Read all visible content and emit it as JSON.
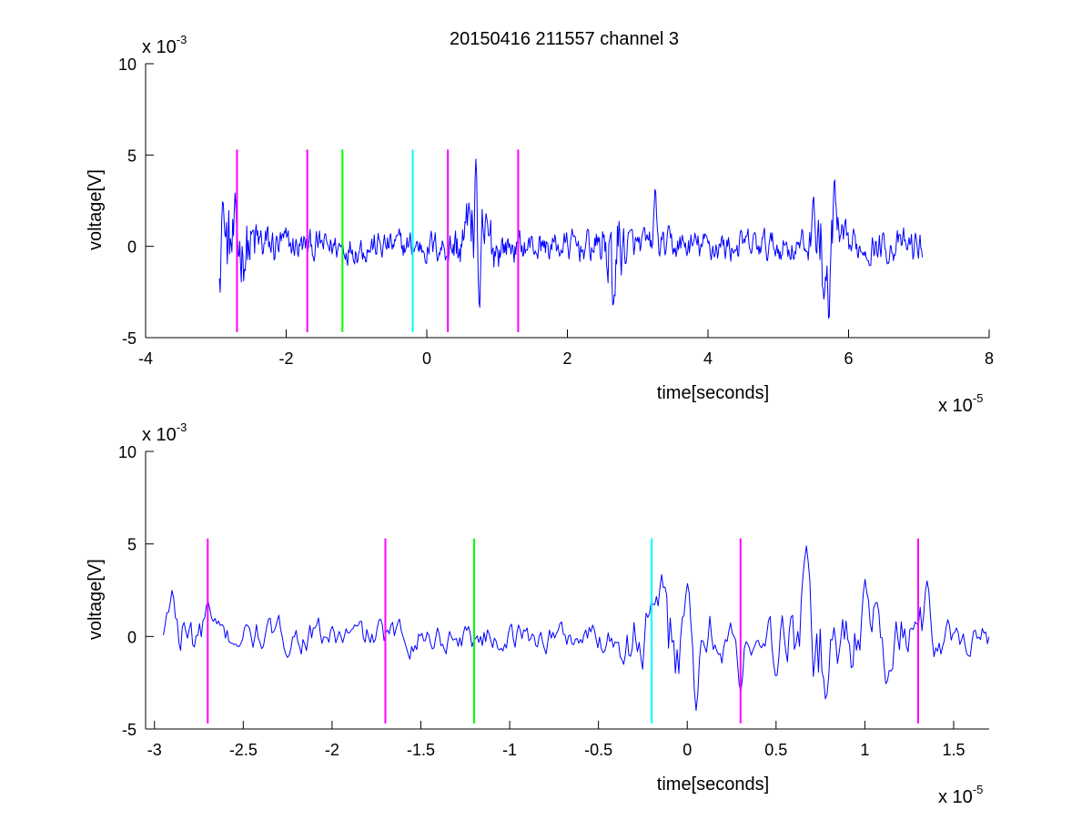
{
  "figure": {
    "title": "20150416 211557 channel 3"
  },
  "chart_data": [
    {
      "type": "line",
      "xlabel": "time[seconds]",
      "ylabel": "voltage[V]",
      "x_multiplier": {
        "base": "x 10",
        "exponent": "-5"
      },
      "y_multiplier": {
        "base": "x 10",
        "exponent": "-3"
      },
      "xlim": [
        -4,
        8
      ],
      "ylim": [
        -5,
        10
      ],
      "x_ticks": [
        -4,
        -2,
        0,
        2,
        4,
        6,
        8
      ],
      "x_tick_labels": [
        "-4",
        "-2",
        "0",
        "2",
        "4",
        "6",
        "8"
      ],
      "y_ticks": [
        -5,
        0,
        5,
        10
      ],
      "y_tick_labels": [
        "-5",
        "0",
        "5",
        "10"
      ],
      "grid": false,
      "series": [
        {
          "color": "#0000ff",
          "x_range": [
            -2.95,
            7.05
          ],
          "bursts": [
            [
              -2.9,
              0.55,
              1.8
            ],
            [
              0.7,
              0.25,
              2.2
            ],
            [
              2.65,
              0.15,
              2.0
            ],
            [
              5.7,
              0.15,
              2.6
            ]
          ],
          "peaks": [
            {
              "x": -2.9,
              "y": 2.5
            },
            {
              "x": 0.6,
              "y": 2.4
            },
            {
              "x": 0.7,
              "y": 4.9
            },
            {
              "x": 0.75,
              "y": -3.5
            },
            {
              "x": 2.65,
              "y": -3.4
            },
            {
              "x": 3.25,
              "y": 3.2
            },
            {
              "x": 5.5,
              "y": 2.8
            },
            {
              "x": 5.65,
              "y": -2.9
            },
            {
              "x": 5.72,
              "y": -4.2
            },
            {
              "x": 5.8,
              "y": 3.7
            }
          ]
        }
      ],
      "markers": [
        {
          "x": -2.7,
          "color": "#ff00ff",
          "y_range": [
            -4.7,
            5.3
          ]
        },
        {
          "x": -1.7,
          "color": "#ff00ff",
          "y_range": [
            -4.7,
            5.3
          ]
        },
        {
          "x": -1.2,
          "color": "#00ff00",
          "y_range": [
            -4.7,
            5.3
          ]
        },
        {
          "x": -0.2,
          "color": "#00ffff",
          "y_range": [
            -4.7,
            5.3
          ]
        },
        {
          "x": 0.3,
          "color": "#ff00ff",
          "y_range": [
            -4.7,
            5.3
          ]
        },
        {
          "x": 1.3,
          "color": "#ff00ff",
          "y_range": [
            -4.7,
            5.3
          ]
        }
      ]
    },
    {
      "type": "line",
      "xlabel": "time[seconds]",
      "ylabel": "voltage[V]",
      "x_multiplier": {
        "base": "x 10",
        "exponent": "-5"
      },
      "y_multiplier": {
        "base": "x 10",
        "exponent": "-3"
      },
      "xlim": [
        -3.05,
        1.7
      ],
      "ylim": [
        -5,
        10
      ],
      "x_ticks": [
        -3,
        -2.5,
        -2,
        -1.5,
        -1,
        -0.5,
        0,
        0.5,
        1,
        1.5
      ],
      "x_tick_labels": [
        "-3",
        "-2.5",
        "-2",
        "-1.5",
        "-1",
        "-0.5",
        "0",
        "0.5",
        "1",
        "1.5"
      ],
      "y_ticks": [
        -5,
        0,
        5,
        10
      ],
      "y_tick_labels": [
        "-5",
        "0",
        "5",
        "10"
      ],
      "grid": false,
      "series": [
        {
          "color": "#0000ff",
          "x_range": [
            -2.95,
            1.7
          ],
          "bursts": [
            [
              -2.85,
              0.1,
              1.2
            ],
            [
              -0.1,
              0.25,
              1.9
            ],
            [
              0.7,
              0.2,
              2.0
            ],
            [
              1.15,
              0.25,
              1.4
            ]
          ],
          "peaks": [
            {
              "x": -2.9,
              "y": 2.5
            },
            {
              "x": -2.7,
              "y": 1.9
            },
            {
              "x": -0.2,
              "y": 1.9
            },
            {
              "x": 0.0,
              "y": 2.9
            },
            {
              "x": 0.05,
              "y": -4.0
            },
            {
              "x": 0.3,
              "y": -3.0
            },
            {
              "x": 0.5,
              "y": -2.2
            },
            {
              "x": 0.67,
              "y": 4.9
            },
            {
              "x": 0.78,
              "y": -3.4
            },
            {
              "x": 1.0,
              "y": 3.1
            },
            {
              "x": 1.12,
              "y": -2.6
            },
            {
              "x": 1.35,
              "y": 3.0
            }
          ]
        }
      ],
      "markers": [
        {
          "x": -2.7,
          "color": "#ff00ff",
          "y_range": [
            -4.7,
            5.3
          ]
        },
        {
          "x": -1.7,
          "color": "#ff00ff",
          "y_range": [
            -4.7,
            5.3
          ]
        },
        {
          "x": -1.2,
          "color": "#00ff00",
          "y_range": [
            -4.7,
            5.3
          ]
        },
        {
          "x": -0.2,
          "color": "#00ffff",
          "y_range": [
            -4.7,
            5.3
          ]
        },
        {
          "x": 0.3,
          "color": "#ff00ff",
          "y_range": [
            -4.7,
            5.3
          ]
        },
        {
          "x": 1.3,
          "color": "#ff00ff",
          "y_range": [
            -4.7,
            5.3
          ]
        }
      ]
    }
  ]
}
